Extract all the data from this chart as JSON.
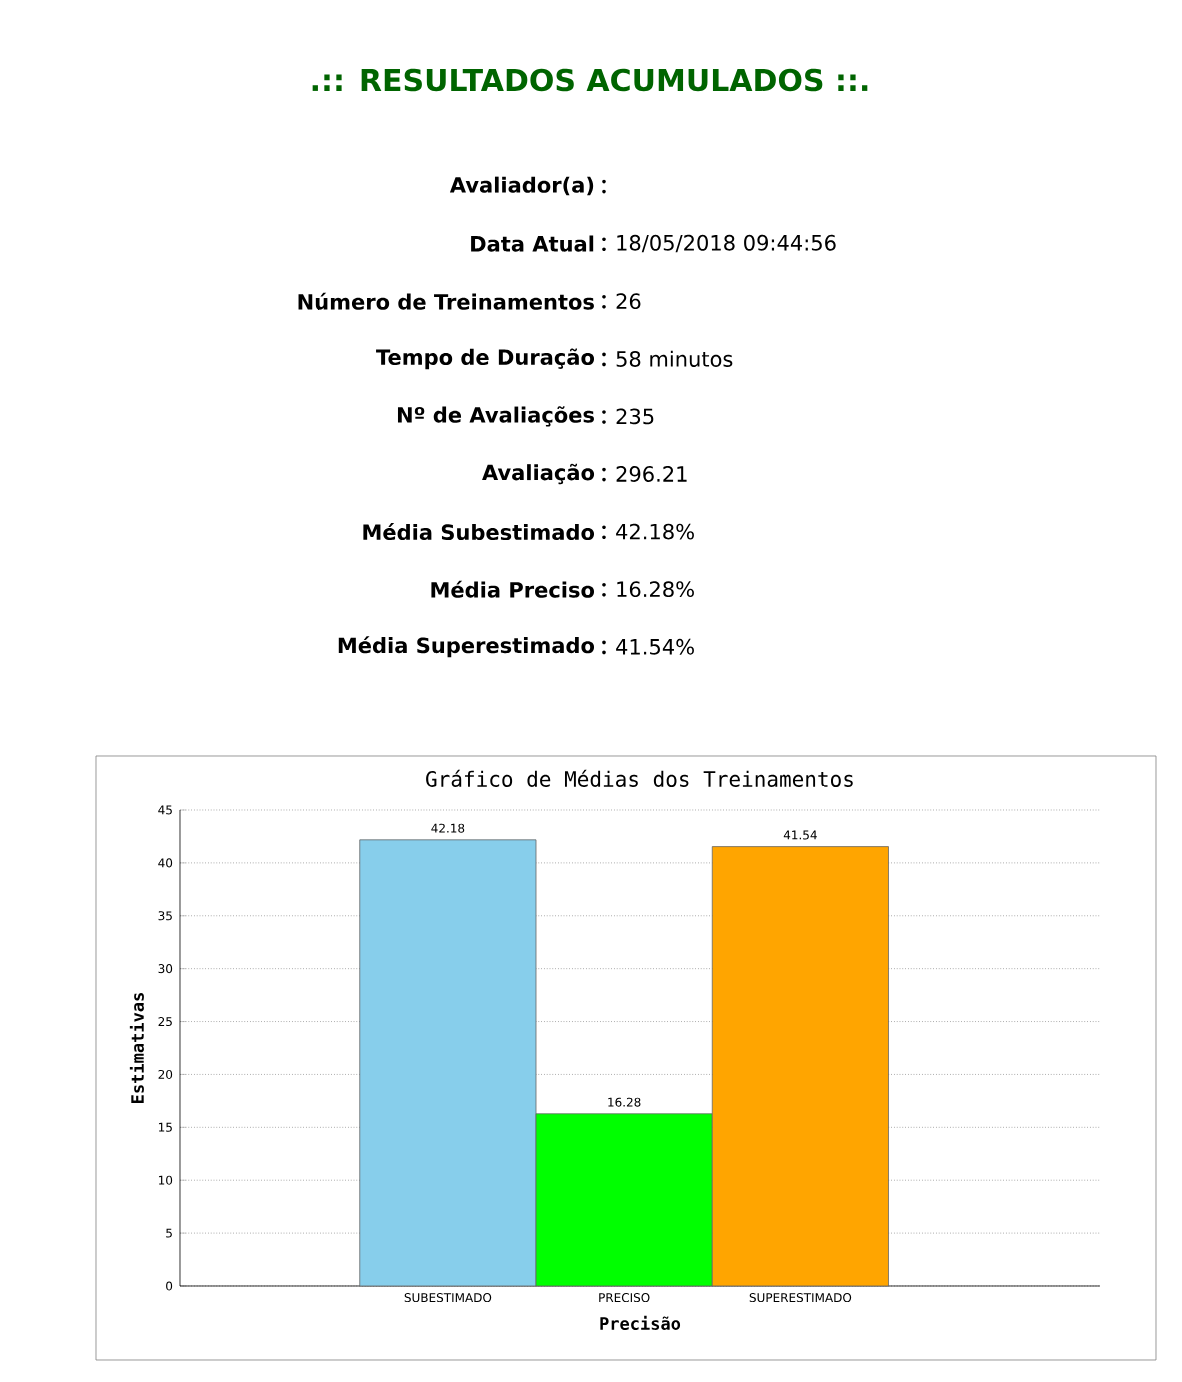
{
  "chart_data": [
    {
      "type": "other",
      "title": ".:: RESULTADOS ACUMULADOS ::.",
      "categories": [
        "Avaliador(a)",
        "Data Atual",
        "Número de Treinamentos",
        "Tempo de Duração",
        "Nº de Avaliações",
        "Avaliação",
        "Média Subestimado",
        "Média Preciso",
        "Média Superestimado"
      ],
      "value_labels": [
        null,
        "18/05/2018 09:44:56",
        "26",
        "58 minutos",
        "235",
        "296.21",
        "42.18%",
        "16.28%",
        "41.54%"
      ]
    },
    {
      "type": "bar",
      "title": "Gráfico de Médias dos Treinamentos",
      "xlabel": "Precisão",
      "ylabel": "Estimativas",
      "categories": [
        "SUBESTIMADO",
        "PRECISO",
        "SUPERESTIMADO"
      ],
      "values": [
        42.18,
        16.28,
        41.54
      ],
      "colors": [
        "#87ceeb",
        "#00ff00",
        "#ffa500"
      ],
      "ylim": [
        0,
        45
      ],
      "yticks": [
        0,
        5,
        10,
        15,
        20,
        25,
        30,
        35,
        40,
        45
      ],
      "grid": "y",
      "data_labels": true
    }
  ]
}
